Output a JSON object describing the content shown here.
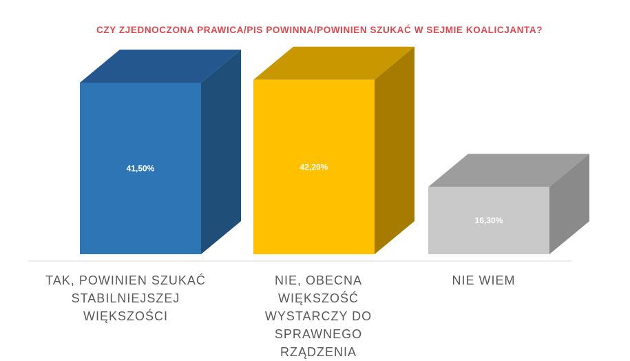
{
  "chart_data": {
    "type": "bar",
    "title": "CZY ZJEDNOCZONA PRAWICA/PIS POWINNA/POWINIEN SZUKAĆ W SEJMIE KOALICJANTA?",
    "categories": [
      "TAK, POWINIEN SZUKAĆ STABILNIEJSZEJ WIĘKSZOŚCI",
      "NIE, OBECNA WIĘKSZOŚĆ WYSTARCZY DO SPRAWNEGO RZĄDZENIA",
      "NIE WIEM"
    ],
    "values": [
      41.5,
      42.2,
      16.3
    ],
    "value_labels": [
      "41,50%",
      "42,20%",
      "16,30%"
    ],
    "unit": "%",
    "colors": {
      "front": [
        "#2e75b6",
        "#ffc000",
        "#c9c9c9"
      ],
      "top": [
        "#25578f",
        "#c99700",
        "#9d9d9d"
      ],
      "side": [
        "#1f4e79",
        "#a67c00",
        "#8a8a8a"
      ]
    },
    "title_color": "#e0474c",
    "label_color": "#595959",
    "style": "3d-bar",
    "grid": false,
    "legend": "none"
  }
}
